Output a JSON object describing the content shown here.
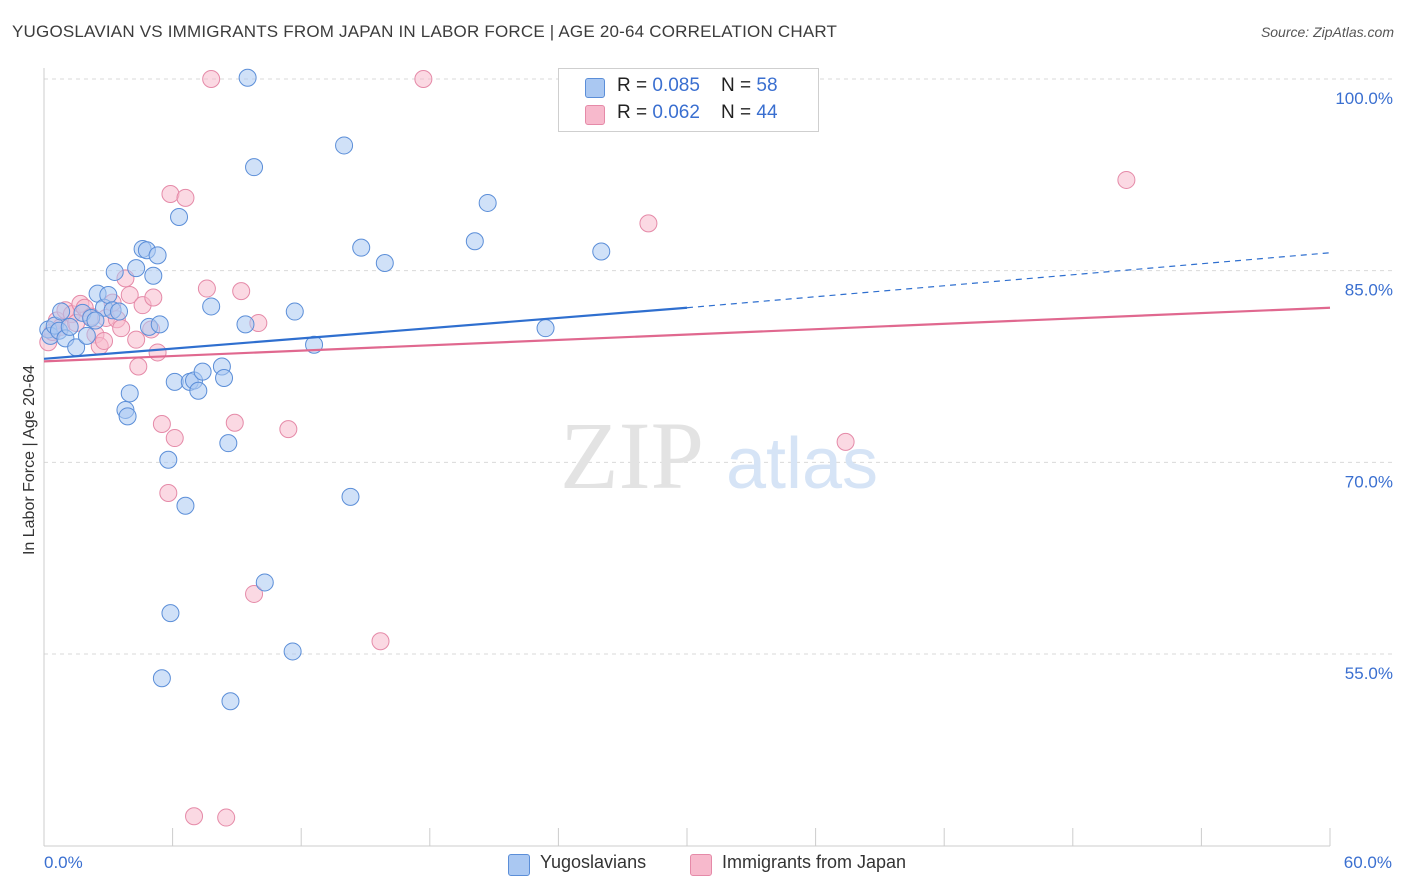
{
  "header": {
    "title": "YUGOSLAVIAN VS IMMIGRANTS FROM JAPAN IN LABOR FORCE | AGE 20-64 CORRELATION CHART",
    "source": "Source: ZipAtlas.com"
  },
  "watermark": {
    "zip": "ZIP",
    "atlas": "atlas"
  },
  "colors": {
    "blue_fill": "#aac8f2",
    "blue_stroke": "#5b8ed8",
    "blue_line": "#2f6fcf",
    "pink_fill": "#f7b9cc",
    "pink_stroke": "#e58aa8",
    "pink_line": "#e0688f",
    "tick_label": "#3a6fd0",
    "grid": "#d9d9d9"
  },
  "legend": {
    "series": [
      {
        "r_label": "R = ",
        "r_value": "0.085",
        "n_label": "N = ",
        "n_value": "58"
      },
      {
        "r_label": "R = ",
        "r_value": "0.062",
        "n_label": "N = ",
        "n_value": "44"
      }
    ]
  },
  "chart_data": {
    "type": "scatter",
    "title": "YUGOSLAVIAN VS IMMIGRANTS FROM JAPAN IN LABOR FORCE | AGE 20-64 CORRELATION CHART",
    "xlabel": "",
    "ylabel": "In Labor Force | Age 20-64",
    "xlim": [
      0,
      60
    ],
    "ylim": [
      39,
      102
    ],
    "x_tick_labels": [
      "0.0%",
      "60.0%"
    ],
    "y_ticks": [
      55,
      70,
      85,
      100
    ],
    "y_tick_labels": [
      "55.0%",
      "70.0%",
      "85.0%",
      "100.0%"
    ],
    "grid": true,
    "series": [
      {
        "name": "Yugoslavians",
        "color": "#aac8f2",
        "points": [
          [
            0.2,
            80.4
          ],
          [
            0.3,
            79.9
          ],
          [
            0.5,
            80.7
          ],
          [
            0.7,
            80.3
          ],
          [
            0.8,
            81.8
          ],
          [
            1.0,
            79.7
          ],
          [
            1.2,
            80.6
          ],
          [
            1.5,
            79.0
          ],
          [
            1.8,
            81.7
          ],
          [
            2.0,
            79.9
          ],
          [
            2.2,
            81.3
          ],
          [
            2.5,
            83.2
          ],
          [
            2.8,
            82.1
          ],
          [
            3.0,
            83.1
          ],
          [
            3.2,
            81.9
          ],
          [
            3.3,
            84.9
          ],
          [
            3.5,
            81.8
          ],
          [
            3.8,
            74.1
          ],
          [
            3.9,
            73.6
          ],
          [
            4.0,
            75.4
          ],
          [
            4.3,
            85.2
          ],
          [
            4.6,
            86.7
          ],
          [
            4.8,
            86.6
          ],
          [
            4.9,
            80.6
          ],
          [
            5.1,
            84.6
          ],
          [
            5.3,
            86.2
          ],
          [
            5.4,
            80.8
          ],
          [
            5.8,
            70.2
          ],
          [
            5.9,
            58.2
          ],
          [
            6.1,
            76.3
          ],
          [
            6.3,
            89.2
          ],
          [
            6.6,
            66.6
          ],
          [
            6.8,
            76.3
          ],
          [
            7.0,
            76.4
          ],
          [
            7.2,
            75.6
          ],
          [
            7.4,
            77.1
          ],
          [
            7.8,
            82.2
          ],
          [
            8.3,
            77.5
          ],
          [
            8.4,
            76.6
          ],
          [
            8.6,
            71.5
          ],
          [
            8.7,
            51.3
          ],
          [
            9.4,
            80.8
          ],
          [
            9.5,
            100.1
          ],
          [
            9.8,
            93.1
          ],
          [
            10.3,
            60.6
          ],
          [
            11.6,
            55.2
          ],
          [
            11.7,
            81.8
          ],
          [
            12.6,
            79.2
          ],
          [
            14.0,
            94.8
          ],
          [
            14.3,
            67.3
          ],
          [
            14.8,
            86.8
          ],
          [
            15.9,
            85.6
          ],
          [
            20.1,
            87.3
          ],
          [
            20.7,
            90.3
          ],
          [
            23.4,
            80.5
          ],
          [
            26.0,
            86.5
          ],
          [
            5.5,
            53.1
          ],
          [
            2.4,
            81.1
          ]
        ]
      },
      {
        "name": "Immigrants from Japan",
        "color": "#f7b9cc",
        "points": [
          [
            0.2,
            79.4
          ],
          [
            0.4,
            80.2
          ],
          [
            0.6,
            81.1
          ],
          [
            0.8,
            80.6
          ],
          [
            1.0,
            81.9
          ],
          [
            1.3,
            81.6
          ],
          [
            1.5,
            80.9
          ],
          [
            1.7,
            82.4
          ],
          [
            1.9,
            82.1
          ],
          [
            2.2,
            81.4
          ],
          [
            2.4,
            80.0
          ],
          [
            2.6,
            79.1
          ],
          [
            2.8,
            79.5
          ],
          [
            2.9,
            81.3
          ],
          [
            3.2,
            82.5
          ],
          [
            3.4,
            81.2
          ],
          [
            3.6,
            80.5
          ],
          [
            3.8,
            84.4
          ],
          [
            4.0,
            83.1
          ],
          [
            4.3,
            79.6
          ],
          [
            4.4,
            77.5
          ],
          [
            4.6,
            82.3
          ],
          [
            5.0,
            80.4
          ],
          [
            5.1,
            82.9
          ],
          [
            5.3,
            78.6
          ],
          [
            5.5,
            73.0
          ],
          [
            5.8,
            67.6
          ],
          [
            5.9,
            91.0
          ],
          [
            6.1,
            71.9
          ],
          [
            6.6,
            90.7
          ],
          [
            7.0,
            42.3
          ],
          [
            7.6,
            83.6
          ],
          [
            7.8,
            100.0
          ],
          [
            8.5,
            42.2
          ],
          [
            8.9,
            73.1
          ],
          [
            9.2,
            83.4
          ],
          [
            9.8,
            59.7
          ],
          [
            10.0,
            80.9
          ],
          [
            11.4,
            72.6
          ],
          [
            15.7,
            56.0
          ],
          [
            17.7,
            100.0
          ],
          [
            28.2,
            88.7
          ],
          [
            37.4,
            71.6
          ],
          [
            50.5,
            92.1
          ]
        ]
      }
    ],
    "trend_lines": [
      {
        "series": "Yugoslavians",
        "x": [
          0,
          30
        ],
        "y": [
          78.1,
          82.1
        ],
        "dashed_extension_to": [
          60,
          86.4
        ]
      },
      {
        "series": "Immigrants from Japan",
        "x": [
          0,
          60
        ],
        "y": [
          77.9,
          82.1
        ]
      }
    ]
  },
  "bottom_legend": {
    "items": [
      {
        "label": "Yugoslavians"
      },
      {
        "label": "Immigrants from Japan"
      }
    ]
  }
}
